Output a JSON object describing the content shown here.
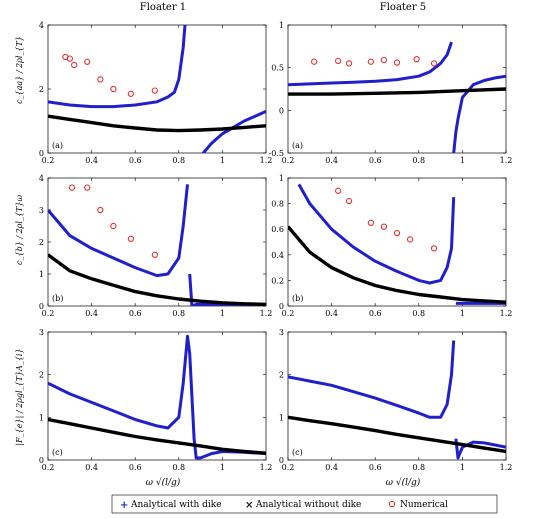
{
  "columns": [
    "Floater 1",
    "Floater 5"
  ],
  "row_ylabels": [
    "c_{aa} / 2ρl_{T}",
    "c_{b} / 2ρl_{T}ω",
    "|F_{e}| / 2ρgl_{T}A_{i}"
  ],
  "xlabel": "ω √(l/g)",
  "legend": [
    {
      "label": "Analytical with dike",
      "color": "#1f1fcc",
      "marker": "+"
    },
    {
      "label": "Analytical without dike",
      "color": "#000000",
      "marker": "x"
    },
    {
      "label": "Numerical",
      "color": "#e53030",
      "marker": "o"
    }
  ],
  "chart_data": [
    {
      "type": "line",
      "panel_tag": "(a)",
      "column": "Floater 1",
      "xlim": [
        0.2,
        1.2
      ],
      "ylim": [
        0,
        4
      ],
      "xticks": [
        0.2,
        0.4,
        0.6,
        0.8,
        1,
        1.2
      ],
      "yticks": [
        0,
        2,
        4
      ],
      "series": [
        {
          "name": "Analytical with dike",
          "style": "blue",
          "x": [
            0.2,
            0.3,
            0.4,
            0.5,
            0.6,
            0.7,
            0.75,
            0.78,
            0.8,
            0.82,
            0.84,
            0.85,
            0.86,
            0.87,
            0.9,
            0.95,
            1.0,
            1.05,
            1.1,
            1.15,
            1.2
          ],
          "y": [
            1.6,
            1.5,
            1.45,
            1.45,
            1.5,
            1.6,
            1.75,
            1.9,
            2.3,
            3.3,
            5,
            -2,
            -1.2,
            -0.6,
            -0.1,
            0.3,
            0.6,
            0.8,
            1.0,
            1.15,
            1.3
          ]
        },
        {
          "name": "Analytical without dike",
          "style": "black",
          "x": [
            0.2,
            0.3,
            0.4,
            0.5,
            0.6,
            0.7,
            0.8,
            0.9,
            1.0,
            1.1,
            1.2
          ],
          "y": [
            1.15,
            1.05,
            0.95,
            0.85,
            0.78,
            0.72,
            0.7,
            0.72,
            0.75,
            0.8,
            0.85
          ]
        },
        {
          "name": "Numerical",
          "style": "red",
          "x": [
            0.28,
            0.3,
            0.32,
            0.38,
            0.44,
            0.5,
            0.58,
            0.69
          ],
          "y": [
            3.0,
            2.95,
            2.75,
            2.85,
            2.3,
            2.0,
            1.85,
            1.95
          ]
        }
      ]
    },
    {
      "type": "line",
      "panel_tag": "(a)",
      "column": "Floater 5",
      "xlim": [
        0.2,
        1.2
      ],
      "ylim": [
        -0.5,
        1
      ],
      "xticks": [
        0.2,
        0.4,
        0.6,
        0.8,
        1,
        1.2
      ],
      "yticks": [
        -0.5,
        0,
        0.5,
        1
      ],
      "series": [
        {
          "name": "Analytical with dike",
          "style": "blue",
          "x": [
            0.2,
            0.3,
            0.4,
            0.5,
            0.6,
            0.7,
            0.8,
            0.85,
            0.9,
            0.93,
            0.95,
            0.96,
            0.97,
            0.98,
            1.0,
            1.05,
            1.1,
            1.15,
            1.2
          ],
          "y": [
            0.3,
            0.31,
            0.32,
            0.33,
            0.34,
            0.36,
            0.4,
            0.45,
            0.55,
            0.65,
            0.8,
            -0.5,
            -0.25,
            -0.1,
            0.15,
            0.3,
            0.35,
            0.38,
            0.4
          ]
        },
        {
          "name": "Analytical without dike",
          "style": "black",
          "x": [
            0.2,
            0.4,
            0.6,
            0.8,
            1.0,
            1.2
          ],
          "y": [
            0.19,
            0.19,
            0.2,
            0.21,
            0.23,
            0.25
          ]
        },
        {
          "name": "Numerical",
          "style": "red",
          "x": [
            0.32,
            0.43,
            0.48,
            0.58,
            0.64,
            0.7,
            0.79,
            0.87
          ],
          "y": [
            0.57,
            0.58,
            0.55,
            0.57,
            0.59,
            0.56,
            0.6,
            0.55
          ]
        }
      ]
    },
    {
      "type": "line",
      "panel_tag": "(b)",
      "column": "Floater 1",
      "xlim": [
        0.2,
        1.2
      ],
      "ylim": [
        0,
        4
      ],
      "xticks": [
        0.2,
        0.4,
        0.6,
        0.8,
        1,
        1.2
      ],
      "yticks": [
        0,
        1,
        2,
        3,
        4
      ],
      "series": [
        {
          "name": "Analytical with dike",
          "style": "blue",
          "x": [
            0.2,
            0.3,
            0.4,
            0.5,
            0.6,
            0.7,
            0.75,
            0.8,
            0.82,
            0.84,
            0.85,
            0.86,
            0.88,
            0.9,
            1.0,
            1.1,
            1.2
          ],
          "y": [
            3.0,
            2.2,
            1.8,
            1.5,
            1.2,
            0.95,
            1.0,
            1.5,
            2.5,
            3.8,
            1.0,
            0.0,
            0.05,
            0.05,
            0.05,
            0.05,
            0.05
          ]
        },
        {
          "name": "Analytical without dike",
          "style": "black",
          "x": [
            0.2,
            0.3,
            0.4,
            0.5,
            0.6,
            0.7,
            0.8,
            0.9,
            1.0,
            1.1,
            1.2
          ],
          "y": [
            1.6,
            1.1,
            0.85,
            0.65,
            0.45,
            0.32,
            0.22,
            0.15,
            0.1,
            0.07,
            0.05
          ]
        },
        {
          "name": "Numerical",
          "style": "red",
          "x": [
            0.31,
            0.38,
            0.44,
            0.5,
            0.58,
            0.69
          ],
          "y": [
            3.7,
            3.7,
            3.0,
            2.5,
            2.1,
            1.6
          ]
        }
      ]
    },
    {
      "type": "line",
      "panel_tag": "(b)",
      "column": "Floater 5",
      "xlim": [
        0.2,
        1.2
      ],
      "ylim": [
        0,
        1
      ],
      "xticks": [
        0.2,
        0.4,
        0.6,
        0.8,
        1,
        1.2
      ],
      "yticks": [
        0,
        0.2,
        0.4,
        0.6,
        0.8,
        1
      ],
      "series": [
        {
          "name": "Analytical with dike",
          "style": "blue",
          "x": [
            0.25,
            0.3,
            0.4,
            0.5,
            0.6,
            0.7,
            0.8,
            0.85,
            0.9,
            0.93,
            0.95,
            0.96,
            0.97,
            1.0,
            1.1,
            1.2
          ],
          "y": [
            0.95,
            0.8,
            0.6,
            0.46,
            0.35,
            0.27,
            0.2,
            0.18,
            0.2,
            0.3,
            0.45,
            0.85,
            0.02,
            0.02,
            0.02,
            0.02
          ]
        },
        {
          "name": "Analytical without dike",
          "style": "black",
          "x": [
            0.2,
            0.3,
            0.4,
            0.5,
            0.6,
            0.7,
            0.8,
            0.9,
            1.0,
            1.1,
            1.2
          ],
          "y": [
            0.62,
            0.42,
            0.3,
            0.22,
            0.16,
            0.12,
            0.09,
            0.07,
            0.05,
            0.04,
            0.03
          ]
        },
        {
          "name": "Numerical",
          "style": "red",
          "x": [
            0.43,
            0.48,
            0.58,
            0.64,
            0.7,
            0.76,
            0.87
          ],
          "y": [
            0.9,
            0.82,
            0.65,
            0.62,
            0.57,
            0.52,
            0.45
          ]
        }
      ]
    },
    {
      "type": "line",
      "panel_tag": "(c)",
      "column": "Floater 1",
      "xlim": [
        0.2,
        1.2
      ],
      "ylim": [
        0,
        3
      ],
      "xticks": [
        0.2,
        0.4,
        0.6,
        0.8,
        1,
        1.2
      ],
      "yticks": [
        0,
        1,
        2,
        3
      ],
      "series": [
        {
          "name": "Analytical with dike",
          "style": "blue",
          "x": [
            0.2,
            0.3,
            0.4,
            0.5,
            0.6,
            0.7,
            0.75,
            0.8,
            0.82,
            0.84,
            0.85,
            0.86,
            0.87,
            0.88,
            0.9,
            0.95,
            1.0,
            1.1,
            1.2
          ],
          "y": [
            1.8,
            1.55,
            1.35,
            1.15,
            0.95,
            0.8,
            0.75,
            1.0,
            1.8,
            2.9,
            2.5,
            1.5,
            0.5,
            0.05,
            0.05,
            0.15,
            0.2,
            0.18,
            0.15
          ]
        },
        {
          "name": "Analytical without dike",
          "style": "black",
          "x": [
            0.2,
            0.3,
            0.4,
            0.5,
            0.6,
            0.7,
            0.8,
            0.9,
            1.0,
            1.1,
            1.2
          ],
          "y": [
            0.95,
            0.85,
            0.75,
            0.65,
            0.55,
            0.47,
            0.4,
            0.33,
            0.25,
            0.2,
            0.16
          ]
        }
      ]
    },
    {
      "type": "line",
      "panel_tag": "(c)",
      "column": "Floater 5",
      "xlim": [
        0.2,
        1.2
      ],
      "ylim": [
        0,
        3
      ],
      "xticks": [
        0.2,
        0.4,
        0.6,
        0.8,
        1,
        1.2
      ],
      "yticks": [
        0,
        1,
        2,
        3
      ],
      "series": [
        {
          "name": "Analytical with dike",
          "style": "blue",
          "x": [
            0.2,
            0.3,
            0.4,
            0.5,
            0.6,
            0.7,
            0.8,
            0.85,
            0.9,
            0.93,
            0.95,
            0.96,
            0.97,
            0.98,
            1.0,
            1.05,
            1.1,
            1.2
          ],
          "y": [
            1.95,
            1.85,
            1.75,
            1.6,
            1.45,
            1.28,
            1.1,
            1.0,
            1.0,
            1.3,
            2.0,
            2.8,
            0.5,
            0.05,
            0.3,
            0.42,
            0.4,
            0.3
          ]
        },
        {
          "name": "Analytical without dike",
          "style": "black",
          "x": [
            0.2,
            0.3,
            0.4,
            0.5,
            0.6,
            0.7,
            0.8,
            0.9,
            1.0,
            1.1,
            1.2
          ],
          "y": [
            1.0,
            0.92,
            0.85,
            0.77,
            0.69,
            0.6,
            0.52,
            0.44,
            0.36,
            0.28,
            0.2
          ]
        }
      ]
    }
  ]
}
